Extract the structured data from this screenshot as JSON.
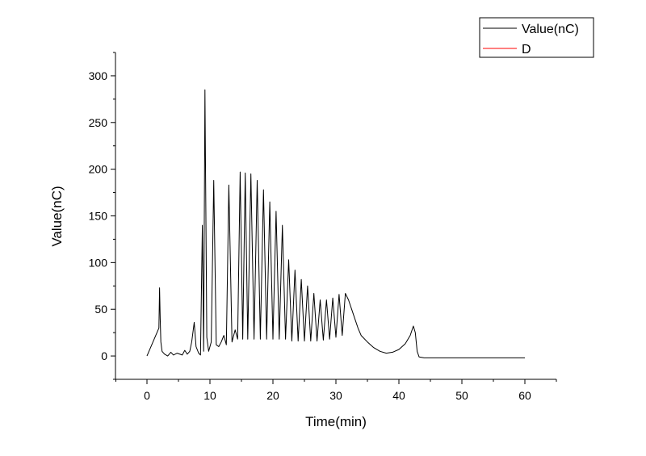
{
  "chart_data": {
    "type": "line",
    "title": "",
    "xlabel": "Time(min)",
    "ylabel": "Value(nC)",
    "xlim": [
      -5,
      65
    ],
    "ylim": [
      -25,
      325
    ],
    "x_ticks": [
      0,
      10,
      20,
      30,
      40,
      50,
      60
    ],
    "y_ticks": [
      0,
      50,
      100,
      150,
      200,
      250,
      300
    ],
    "grid": false,
    "legend_position": "top-right",
    "legend": [
      "Value(nC)",
      "D"
    ],
    "colors": {
      "series_value": "#000000",
      "series_d": "#ff0000"
    },
    "series": [
      {
        "name": "Value(nC)",
        "x": [
          0,
          1.9,
          2.0,
          2.1,
          2.2,
          2.4,
          2.8,
          3.3,
          3.8,
          4.2,
          4.8,
          5.6,
          6.0,
          6.4,
          6.8,
          7.1,
          7.5,
          7.8,
          8.2,
          8.5,
          8.8,
          9.0,
          9.2,
          9.5,
          9.8,
          10.2,
          10.6,
          11.0,
          11.4,
          11.8,
          12.2,
          12.6,
          13.0,
          13.5,
          14.0,
          14.4,
          14.8,
          15.2,
          15.6,
          16.0,
          16.5,
          17.0,
          17.5,
          18.0,
          18.5,
          19.0,
          19.5,
          20.0,
          20.5,
          21.0,
          21.5,
          22.0,
          22.5,
          23.0,
          23.5,
          24.0,
          24.5,
          25.0,
          25.5,
          26.0,
          26.5,
          27.0,
          27.5,
          28.0,
          28.5,
          29.0,
          29.5,
          30.0,
          30.5,
          31.0,
          31.5,
          32.0,
          32.5,
          33.0,
          33.5,
          34.0,
          35.0,
          36.0,
          37.0,
          38.0,
          39.0,
          40.0,
          41.0,
          41.8,
          42.3,
          42.6,
          42.9,
          43.2,
          44.0,
          50.0,
          60.0
        ],
        "y": [
          0,
          30,
          73,
          40,
          15,
          5,
          2,
          0,
          4,
          1,
          3,
          1,
          6,
          2,
          5,
          15,
          36,
          10,
          3,
          1,
          140,
          5,
          285,
          20,
          5,
          15,
          188,
          12,
          10,
          15,
          22,
          12,
          183,
          15,
          28,
          18,
          197,
          18,
          196,
          18,
          195,
          18,
          188,
          18,
          178,
          18,
          165,
          18,
          155,
          18,
          140,
          18,
          103,
          16,
          92,
          16,
          82,
          16,
          75,
          16,
          67,
          16,
          60,
          17,
          60,
          18,
          62,
          20,
          66,
          22,
          67,
          60,
          50,
          40,
          30,
          22,
          15,
          9,
          5,
          3,
          4,
          7,
          13,
          22,
          32,
          25,
          5,
          -1,
          -2,
          -2,
          -2
        ]
      },
      {
        "name": "D",
        "x": [],
        "y": []
      }
    ]
  }
}
